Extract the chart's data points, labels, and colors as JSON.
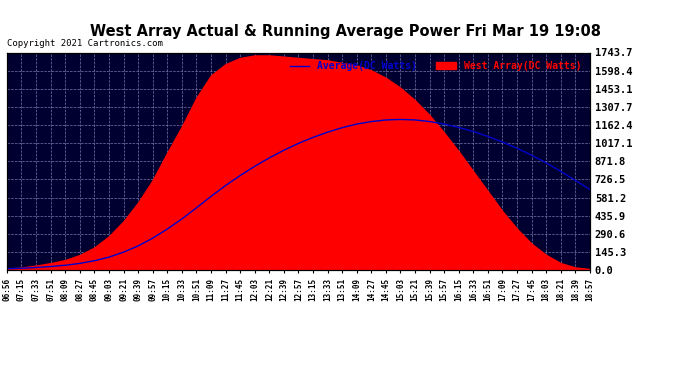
{
  "title": "West Array Actual & Running Average Power Fri Mar 19 19:08",
  "copyright": "Copyright 2021 Cartronics.com",
  "legend_avg": "Average(DC Watts)",
  "legend_west": "West Array(DC Watts)",
  "ylabel_ticks": [
    0.0,
    145.3,
    290.6,
    435.9,
    581.2,
    726.5,
    871.8,
    1017.1,
    1162.4,
    1307.7,
    1453.1,
    1598.4,
    1743.7
  ],
  "ymax": 1743.7,
  "ymin": 0.0,
  "plot_bg_color": "#000030",
  "fill_color": "#ff0000",
  "line_color": "#0000ff",
  "avg_line_color": "#0000cc",
  "x_labels": [
    "06:56",
    "07:15",
    "07:33",
    "07:51",
    "08:09",
    "08:27",
    "08:45",
    "09:03",
    "09:21",
    "09:39",
    "09:57",
    "10:15",
    "10:33",
    "10:51",
    "11:09",
    "11:27",
    "11:45",
    "12:03",
    "12:21",
    "12:39",
    "12:57",
    "13:15",
    "13:33",
    "13:51",
    "14:09",
    "14:27",
    "14:45",
    "15:03",
    "15:21",
    "15:39",
    "15:57",
    "16:15",
    "16:33",
    "16:51",
    "17:09",
    "17:27",
    "17:45",
    "18:03",
    "18:21",
    "18:39",
    "18:57"
  ],
  "west_array": [
    10,
    20,
    35,
    55,
    80,
    120,
    180,
    270,
    390,
    540,
    720,
    940,
    1150,
    1380,
    1560,
    1650,
    1700,
    1720,
    1720,
    1710,
    1700,
    1690,
    1680,
    1660,
    1640,
    1600,
    1540,
    1460,
    1360,
    1240,
    1100,
    950,
    790,
    630,
    470,
    330,
    210,
    120,
    55,
    20,
    8
  ],
  "avg_array": [
    10,
    14,
    20,
    28,
    38,
    53,
    74,
    103,
    143,
    193,
    255,
    328,
    409,
    498,
    590,
    677,
    757,
    831,
    899,
    960,
    1015,
    1063,
    1105,
    1141,
    1170,
    1190,
    1203,
    1207,
    1203,
    1190,
    1170,
    1143,
    1110,
    1071,
    1026,
    976,
    920,
    859,
    791,
    718,
    645
  ]
}
